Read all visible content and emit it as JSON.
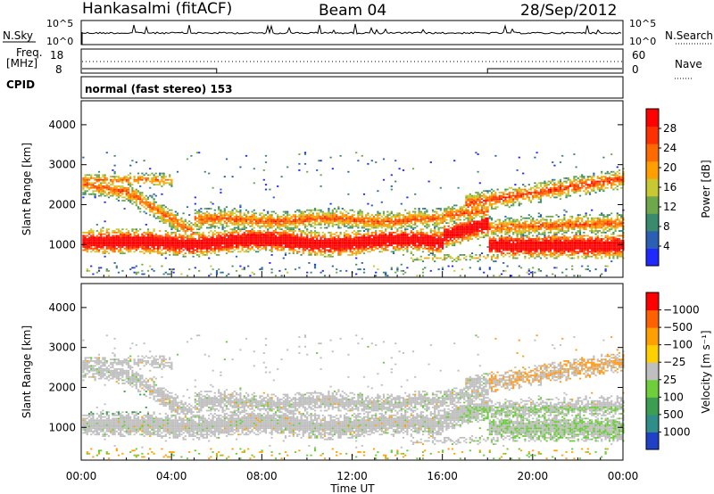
{
  "header": {
    "station": "Hankasalmi (fitACF)",
    "beam": "Beam 04",
    "date": "28/Sep/2012"
  },
  "top_panels": {
    "nsky_label": "N.Sky",
    "nsky_ticks": [
      "10^5",
      "10^0"
    ],
    "nsearch_label": "N.Search",
    "nsearch_ticks": [
      "10^5",
      "10^0"
    ],
    "freq_label_1": "Freq.",
    "freq_label_2": "[MHz]",
    "freq_ticks": [
      "18",
      "8"
    ],
    "nave_label": "Nave",
    "nave_ticks": [
      "60",
      "0"
    ],
    "cpid_label": "CPID",
    "cpid_text": "normal (fast stereo) 153"
  },
  "chart_data": [
    {
      "type": "heatmap",
      "name": "power",
      "ylabel": "Slant Range [km]",
      "xlabel": "Time UT",
      "x_ticks": [
        "00:00",
        "04:00",
        "08:00",
        "12:00",
        "16:00",
        "20:00",
        "00:00"
      ],
      "xlim": [
        0,
        24
      ],
      "ylim": [
        180,
        4600
      ],
      "y_ticks": [
        1000,
        2000,
        3000,
        4000
      ],
      "colorbar": {
        "label": "Power [dB]",
        "ticks": [
          "4",
          "8",
          "12",
          "16",
          "20",
          "24",
          "28"
        ],
        "colors": [
          "#1e28ff",
          "#2a5fb4",
          "#3a8a6e",
          "#6fa84a",
          "#c8c832",
          "#ffa000",
          "#ff6a00",
          "#ff3000",
          "#ff0000"
        ]
      }
    },
    {
      "type": "heatmap",
      "name": "velocity",
      "ylabel": "Slant Range [km]",
      "xlabel": "Time UT",
      "x_ticks": [
        "00:00",
        "04:00",
        "08:00",
        "12:00",
        "16:00",
        "20:00",
        "00:00"
      ],
      "xlim": [
        0,
        24
      ],
      "ylim": [
        180,
        4600
      ],
      "y_ticks": [
        1000,
        2000,
        3000,
        4000
      ],
      "colorbar": {
        "label": "Velocity [m s⁻¹]",
        "ticks": [
          "1000",
          "500",
          "100",
          "25",
          "−25",
          "−100",
          "−500",
          "−1000"
        ],
        "colors": [
          "#2040c8",
          "#2f8d8a",
          "#3c9e50",
          "#6fcf3a",
          "#bfbfbf",
          "#ffd000",
          "#ffa000",
          "#ff6000",
          "#ff0000"
        ]
      }
    }
  ]
}
